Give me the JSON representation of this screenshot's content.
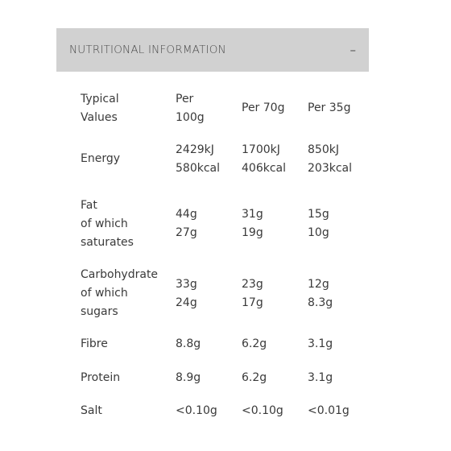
{
  "accordion": {
    "title": "NUTRITIONAL INFORMATION",
    "toggle_symbol": "–"
  },
  "table": {
    "header": {
      "col0": [
        "Typical",
        "Values"
      ],
      "col1": [
        "Per",
        "100g"
      ],
      "col2": "Per 70g",
      "col3": "Per 35g"
    },
    "rows": [
      {
        "label": [
          "Energy"
        ],
        "per100": [
          "2429kJ",
          "580kcal"
        ],
        "per70": [
          "1700kJ",
          "406kcal"
        ],
        "per35": [
          "850kJ",
          "203kcal"
        ]
      },
      {
        "label": [
          "Fat",
          "of which",
          "saturates"
        ],
        "per100": [
          "44g",
          "27g"
        ],
        "per70": [
          "31g",
          "19g"
        ],
        "per35": [
          "15g",
          "10g"
        ]
      },
      {
        "label": [
          "Carbohydrate",
          "of which",
          "sugars"
        ],
        "per100": [
          "33g",
          "24g"
        ],
        "per70": [
          "23g",
          "17g"
        ],
        "per35": [
          "12g",
          "8.3g"
        ]
      },
      {
        "label": [
          "Fibre"
        ],
        "per100": [
          "8.8g"
        ],
        "per70": [
          "6.2g"
        ],
        "per35": [
          "3.1g"
        ]
      },
      {
        "label": [
          "Protein"
        ],
        "per100": [
          "8.9g"
        ],
        "per70": [
          "6.2g"
        ],
        "per35": [
          "3.1g"
        ]
      },
      {
        "label": [
          "Salt"
        ],
        "per100": [
          "<0.10g"
        ],
        "per70": [
          "<0.10g"
        ],
        "per35": [
          "<0.01g"
        ]
      }
    ]
  },
  "colors": {
    "header_bg": "#d1d1d1",
    "text": "#3a3a3a"
  },
  "icons": {
    "toggle": "minus-icon"
  }
}
